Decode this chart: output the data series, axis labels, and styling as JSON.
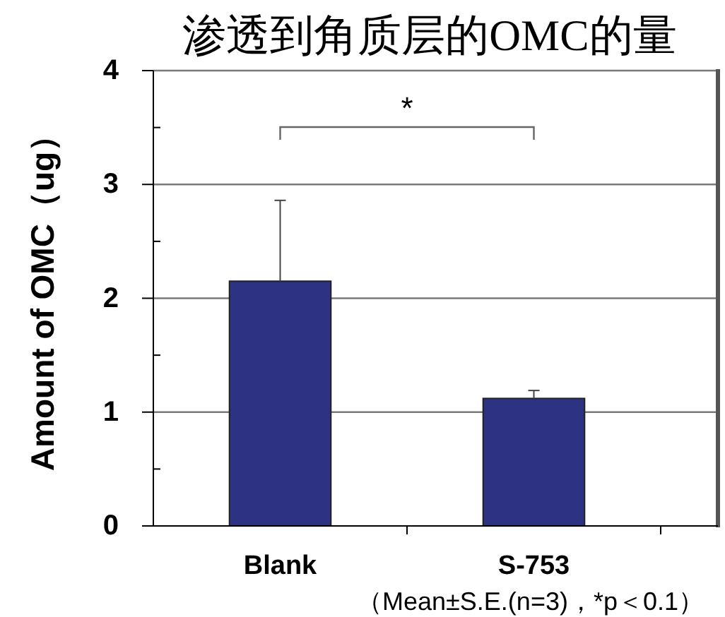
{
  "chart_data": {
    "type": "bar",
    "title": "渗透到角质层的OMC的量",
    "ylabel": "Amount of OMC（ug）",
    "categories": [
      "Blank",
      "S-753"
    ],
    "values": [
      2.15,
      1.12
    ],
    "errors": [
      [
        2.15,
        2.86
      ],
      [
        1.12,
        1.19
      ]
    ],
    "color": "#2e3282",
    "ylim": [
      0,
      4
    ],
    "yticks": [
      0,
      {
        "value": 0.5,
        "label": null
      },
      1,
      {
        "value": 1.5,
        "label": null
      },
      2,
      {
        "value": 2.5,
        "label": null
      },
      3,
      {
        "value": 3.5,
        "label": null
      },
      4
    ],
    "grid": "y",
    "annotations": [
      "*",
      "（Mean±S.E.(n=3)，*p＜0.1）"
    ]
  }
}
